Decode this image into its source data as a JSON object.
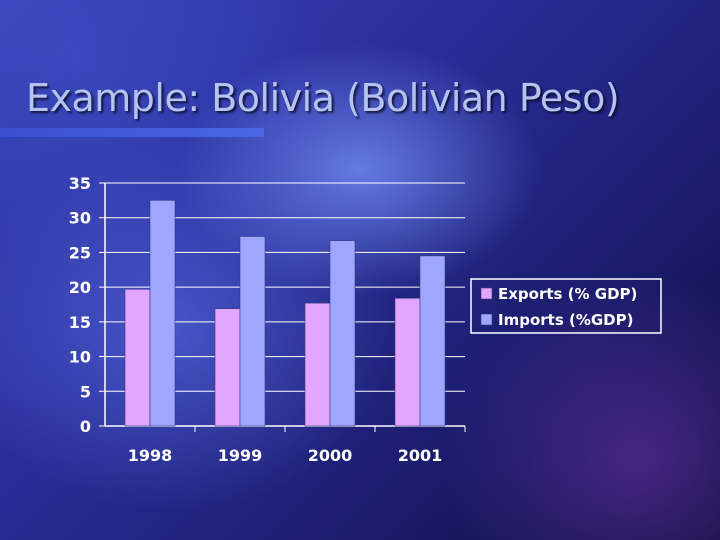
{
  "slide": {
    "title": "Example: Bolivia (Bolivian Peso)"
  },
  "colors": {
    "exports": "#e2a6ff",
    "imports": "#9ea7ff",
    "gridline": "#ffffff"
  },
  "chart_data": {
    "type": "bar",
    "categories": [
      "1998",
      "1999",
      "2000",
      "2001"
    ],
    "series": [
      {
        "name": "Exports (% GDP)",
        "values": [
          19.7,
          16.9,
          17.7,
          18.4
        ]
      },
      {
        "name": "Imports (%GDP)",
        "values": [
          32.5,
          27.3,
          26.7,
          24.5
        ]
      }
    ],
    "ylim": [
      0,
      35
    ],
    "yticks": [
      "0",
      "5",
      "10",
      "15",
      "20",
      "25",
      "30",
      "35"
    ],
    "title": "",
    "xlabel": "",
    "ylabel": "",
    "grid": true,
    "legend": "right"
  }
}
